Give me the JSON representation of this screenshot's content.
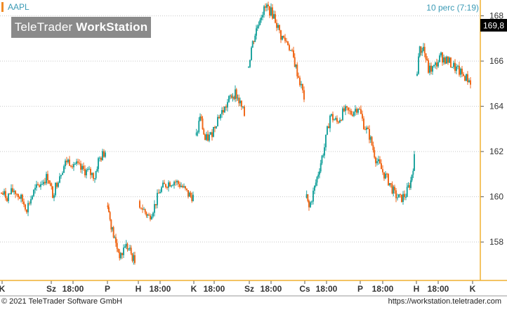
{
  "header": {
    "symbol": "AAPL",
    "interval_label": "10 perc (7:19)",
    "logo_brand": "TeleTrader",
    "logo_product": "WorkStation"
  },
  "footer": {
    "copyright": "© 2021 TeleTrader Software GmbH",
    "url": "https://workstation.teletrader.com"
  },
  "colors": {
    "up": "#21a5a0",
    "down": "#f06a1c",
    "grid": "#c8c8c8",
    "price_tag_bg": "#000000",
    "axis_border": "#f0b030"
  },
  "chart_data": {
    "type": "candlestick",
    "title": "",
    "xlabel": "",
    "ylabel": "",
    "ylim": [
      156.3,
      168.7
    ],
    "y_ticks": [
      158,
      160,
      162,
      164,
      166,
      168
    ],
    "last_price_label": "169,8",
    "x_tick_labels": [
      "K",
      "Sz",
      "18:00",
      "P",
      "H",
      "18:00",
      "K",
      "18:00",
      "Sz",
      "18:00",
      "Cs",
      "18:00",
      "P",
      "18:00",
      "H",
      "18:00",
      "K"
    ],
    "sessions": [
      {
        "day": "K",
        "path": [
          [
            0,
            160.2
          ],
          [
            10,
            160.0
          ],
          [
            20,
            160.3
          ],
          [
            30,
            159.9
          ],
          [
            38,
            159.5
          ],
          [
            48,
            160.2
          ],
          [
            58,
            160.6
          ],
          [
            68,
            160.9
          ],
          [
            75,
            160.1
          ],
          [
            85,
            161.0
          ],
          [
            95,
            161.6
          ],
          [
            105,
            161.5
          ],
          [
            115,
            161.2
          ],
          [
            125,
            161.1
          ],
          [
            135,
            160.9
          ],
          [
            140,
            161.6
          ],
          [
            150,
            162.0
          ]
        ]
      },
      {
        "day": "P",
        "path": [
          [
            152,
            160.2
          ],
          [
            155,
            159.3
          ],
          [
            160,
            158.5
          ],
          [
            165,
            157.9
          ],
          [
            172,
            157.3
          ],
          [
            178,
            157.9
          ],
          [
            185,
            157.6
          ],
          [
            192,
            157.1
          ]
        ]
      },
      {
        "day": "H",
        "path": [
          [
            197,
            159.8
          ],
          [
            205,
            159.4
          ],
          [
            212,
            159.1
          ],
          [
            220,
            159.6
          ],
          [
            228,
            160.3
          ],
          [
            238,
            160.6
          ],
          [
            248,
            160.7
          ],
          [
            258,
            160.5
          ],
          [
            268,
            160.1
          ],
          [
            275,
            160.0
          ]
        ]
      },
      {
        "day": "K",
        "path": [
          [
            278,
            162.3
          ],
          [
            285,
            163.6
          ],
          [
            292,
            162.5
          ],
          [
            300,
            162.7
          ],
          [
            310,
            163.5
          ],
          [
            320,
            163.9
          ],
          [
            328,
            164.4
          ],
          [
            335,
            164.6
          ],
          [
            342,
            164.1
          ],
          [
            348,
            163.6
          ]
        ]
      },
      {
        "day": "Sz",
        "path": [
          [
            352,
            165.4
          ],
          [
            358,
            166.6
          ],
          [
            365,
            167.4
          ],
          [
            372,
            168.1
          ],
          [
            380,
            168.4
          ],
          [
            390,
            168.0
          ],
          [
            400,
            167.1
          ],
          [
            410,
            166.8
          ],
          [
            418,
            166.1
          ],
          [
            425,
            165.3
          ],
          [
            433,
            164.4
          ]
        ]
      },
      {
        "day": "Cs",
        "path": [
          [
            435,
            160.1
          ],
          [
            440,
            159.5
          ],
          [
            448,
            160.4
          ],
          [
            455,
            161.3
          ],
          [
            462,
            162.2
          ],
          [
            470,
            163.6
          ],
          [
            480,
            163.3
          ],
          [
            490,
            163.8
          ],
          [
            500,
            163.7
          ],
          [
            510,
            164.0
          ],
          [
            518,
            163.2
          ],
          [
            526,
            162.7
          ],
          [
            535,
            161.7
          ],
          [
            545,
            161.1
          ],
          [
            555,
            160.6
          ],
          [
            562,
            160.1
          ],
          [
            570,
            159.9
          ],
          [
            578,
            160.1
          ],
          [
            585,
            160.7
          ],
          [
            590,
            161.7
          ]
        ]
      },
      {
        "day": "H",
        "path": [
          [
            592,
            164.5
          ],
          [
            596,
            166.4
          ],
          [
            603,
            166.6
          ],
          [
            610,
            165.6
          ],
          [
            618,
            165.7
          ],
          [
            628,
            166.2
          ],
          [
            638,
            166.0
          ],
          [
            648,
            165.7
          ],
          [
            658,
            165.4
          ],
          [
            670,
            165.1
          ]
        ]
      },
      {
        "day": "K",
        "path": [
          [
            673,
            168.7
          ],
          [
            675,
            169.2
          ]
        ]
      }
    ]
  }
}
